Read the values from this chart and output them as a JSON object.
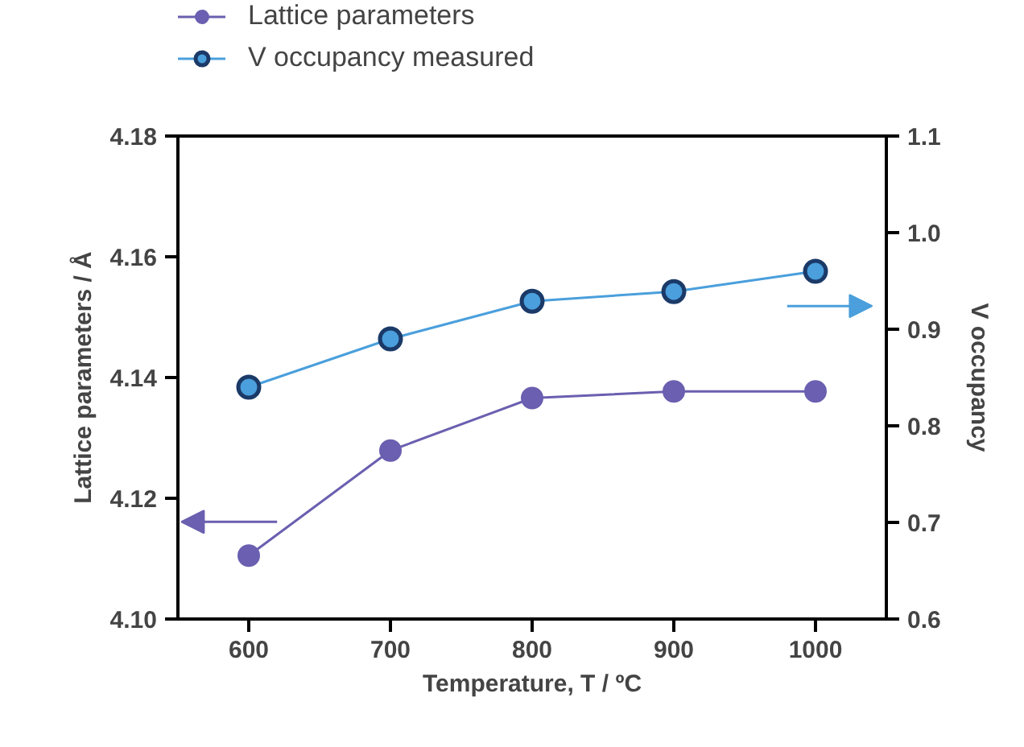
{
  "chart_data": {
    "type": "line",
    "xlabel": "Temperature, T / ºC",
    "ylabel": "Lattice parameters / Å",
    "y2label": "V occupancy",
    "x": [
      600,
      700,
      800,
      900,
      1000
    ],
    "series": [
      {
        "name": "Lattice parameters",
        "color": "#6a5fb0",
        "values": [
          4.1105,
          4.1279,
          4.1366,
          4.1377,
          4.1377
        ]
      },
      {
        "name": "V occupancy measured",
        "color": "#4a9fdc",
        "values": [
          0.84,
          0.89,
          0.929,
          0.939,
          0.96
        ],
        "axis": "y2"
      }
    ],
    "xlim": [
      550,
      1050
    ],
    "ylim": [
      4.1,
      4.18
    ],
    "y2lim": [
      0.6,
      1.1
    ],
    "xticks": [
      600,
      700,
      800,
      900,
      1000
    ],
    "yticks": [
      {
        "value": 4.1,
        "label": "4.10"
      },
      {
        "value": 4.12,
        "label": "4.12"
      },
      {
        "value": 4.14,
        "label": "4.14"
      },
      {
        "value": 4.16,
        "label": "4.16"
      },
      {
        "value": 4.18,
        "label": "4.18"
      }
    ],
    "y2ticks": [
      {
        "value": 0.6,
        "label": "0.6"
      },
      {
        "value": 0.7,
        "label": "0.7"
      },
      {
        "value": 0.8,
        "label": "0.8"
      },
      {
        "value": 0.9,
        "label": "0.9"
      },
      {
        "value": 1.0,
        "label": "1.0"
      },
      {
        "value": 1.1,
        "label": "1.1"
      }
    ],
    "grid": false,
    "legend": "top left",
    "marker": "circle",
    "line_style": "solid"
  }
}
